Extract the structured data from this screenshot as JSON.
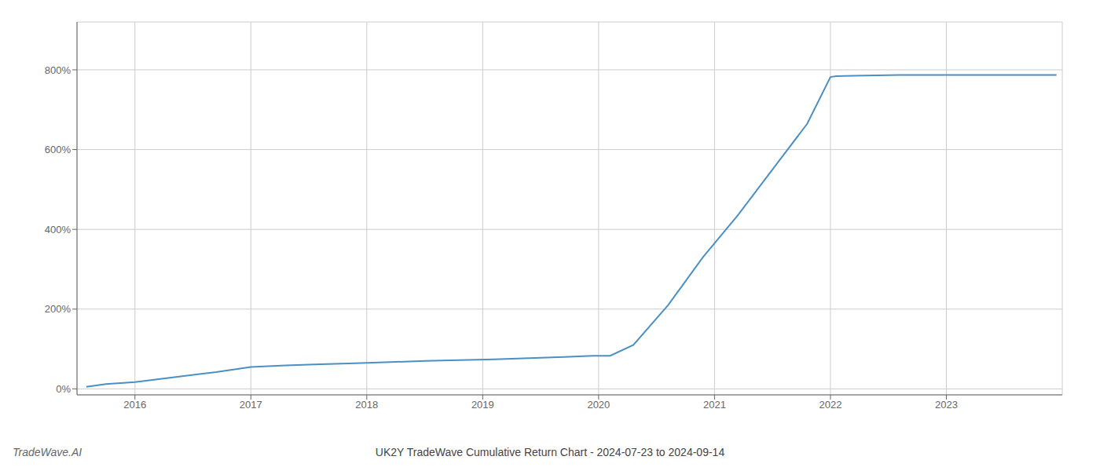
{
  "chart_data": {
    "type": "line",
    "title": "UK2Y TradeWave Cumulative Return Chart - 2024-07-23 to 2024-09-14",
    "annotations": [
      "TradeWave.AI"
    ],
    "x": [
      2015.58,
      2015.75,
      2016.0,
      2016.3,
      2016.7,
      2017.0,
      2017.3,
      2017.6,
      2017.9,
      2018.2,
      2018.5,
      2018.8,
      2019.1,
      2019.4,
      2019.7,
      2019.95,
      2020.0,
      2020.1,
      2020.3,
      2020.6,
      2020.9,
      2021.2,
      2021.5,
      2021.8,
      2022.0,
      2022.05,
      2022.2,
      2022.4,
      2022.6,
      2022.8,
      2023.0,
      2023.3,
      2023.7,
      2023.95
    ],
    "values": [
      0.05,
      0.12,
      0.17,
      0.28,
      0.42,
      0.55,
      0.59,
      0.62,
      0.64,
      0.67,
      0.7,
      0.72,
      0.74,
      0.77,
      0.8,
      0.83,
      0.83,
      0.83,
      1.1,
      2.1,
      3.3,
      4.35,
      5.5,
      6.65,
      7.82,
      7.84,
      7.85,
      7.86,
      7.87,
      7.87,
      7.87,
      7.87,
      7.87,
      7.87
    ],
    "color": "#4a90c4",
    "xlim": [
      2015.5,
      2024.0
    ],
    "ylim": [
      -0.15,
      9.2
    ],
    "xticks": [
      2016,
      2017,
      2018,
      2019,
      2020,
      2021,
      2022,
      2023
    ],
    "yticks": [
      {
        "value": 0,
        "label": "0%"
      },
      {
        "value": 2,
        "label": "200%"
      },
      {
        "value": 4,
        "label": "400%"
      },
      {
        "value": 6,
        "label": "600%"
      },
      {
        "value": 8,
        "label": "800%"
      }
    ],
    "grid": true
  }
}
